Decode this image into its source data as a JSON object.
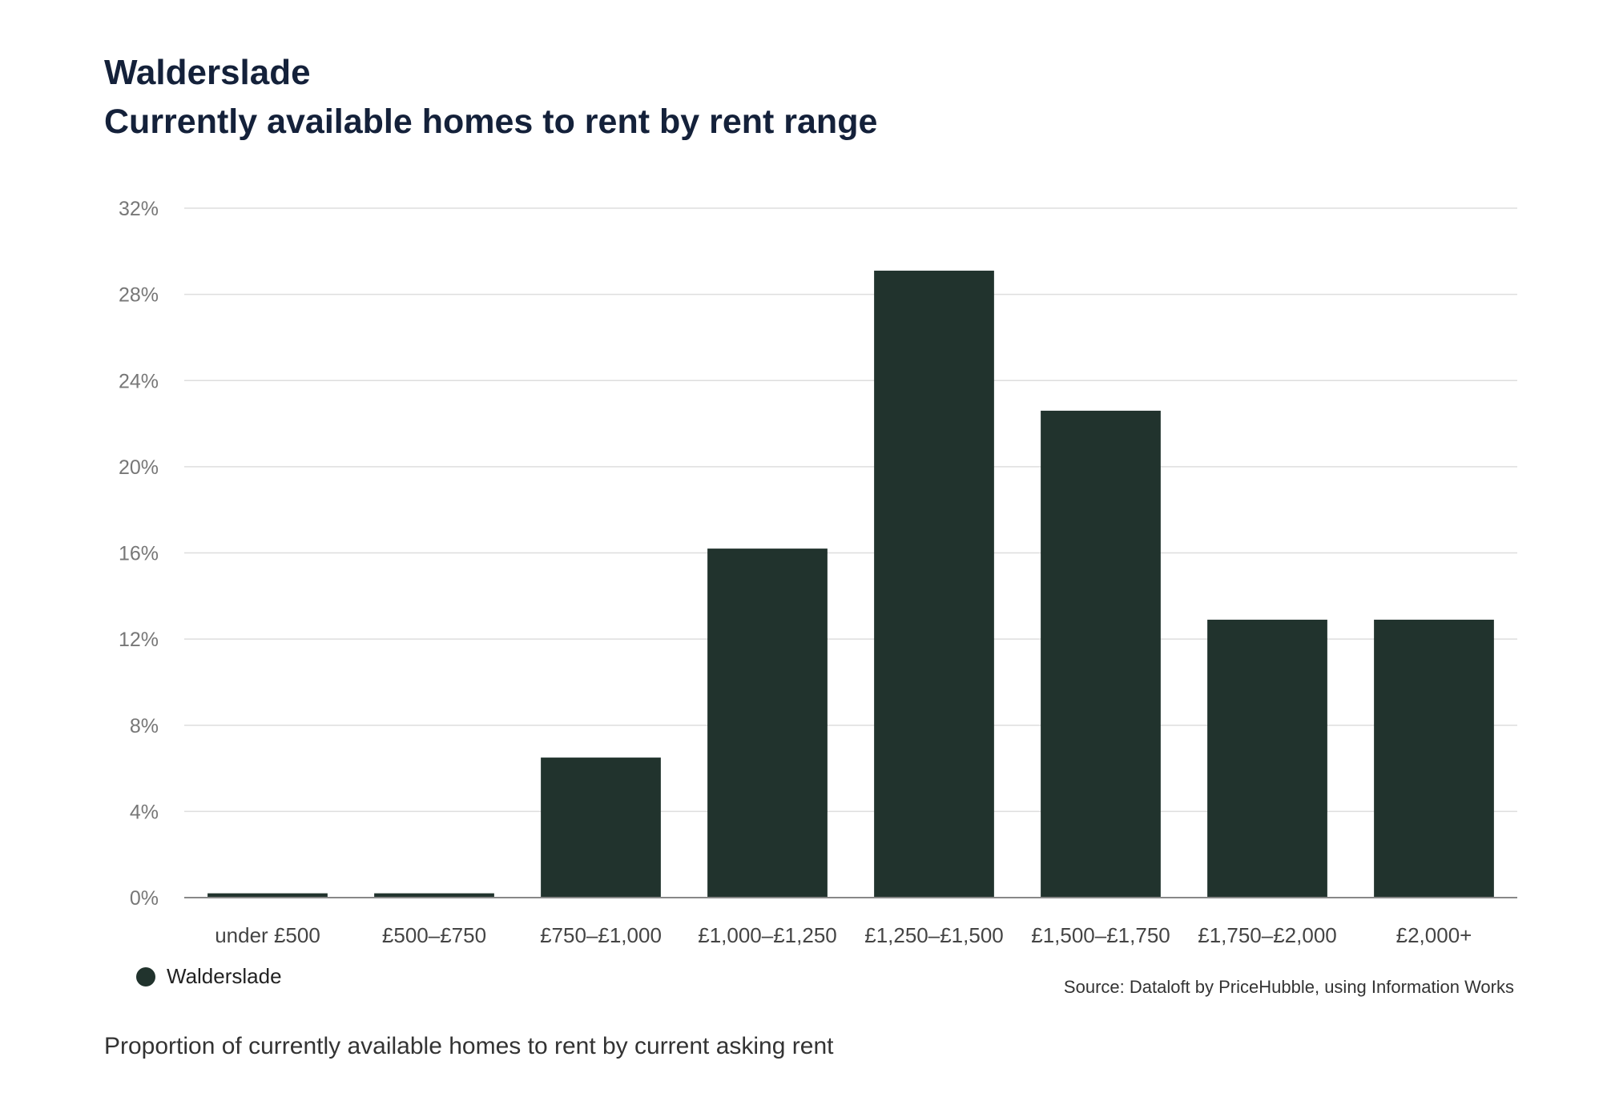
{
  "header": {
    "title": "Walderslade",
    "subtitle": "Currently available homes to rent by rent range"
  },
  "legend": {
    "label": "Walderslade"
  },
  "source": "Source: Dataloft by PriceHubble, using Information Works",
  "caption": "Proportion of currently available homes to rent by current asking rent",
  "colors": {
    "bar": "#21332d",
    "grid": "#dedede",
    "axis": "#888888",
    "tick_text": "#777777",
    "category_text": "#444444"
  },
  "chart_data": {
    "type": "bar",
    "title": "Walderslade",
    "subtitle": "Currently available homes to rent by rent range",
    "xlabel": "",
    "ylabel": "",
    "ylim": [
      0,
      32
    ],
    "yticks": [
      0,
      4,
      8,
      12,
      16,
      20,
      24,
      28,
      32
    ],
    "ytick_suffix": "%",
    "grid": true,
    "legend_position": "bottom-left",
    "categories": [
      "under £500",
      "£500–£750",
      "£750–£1,000",
      "£1,000–£1,250",
      "£1,250–£1,500",
      "£1,500–£1,750",
      "£1,750–£2,000",
      "£2,000+"
    ],
    "series": [
      {
        "name": "Walderslade",
        "values": [
          0.2,
          0.2,
          6.5,
          16.2,
          29.1,
          22.6,
          12.9,
          12.9
        ]
      }
    ]
  }
}
